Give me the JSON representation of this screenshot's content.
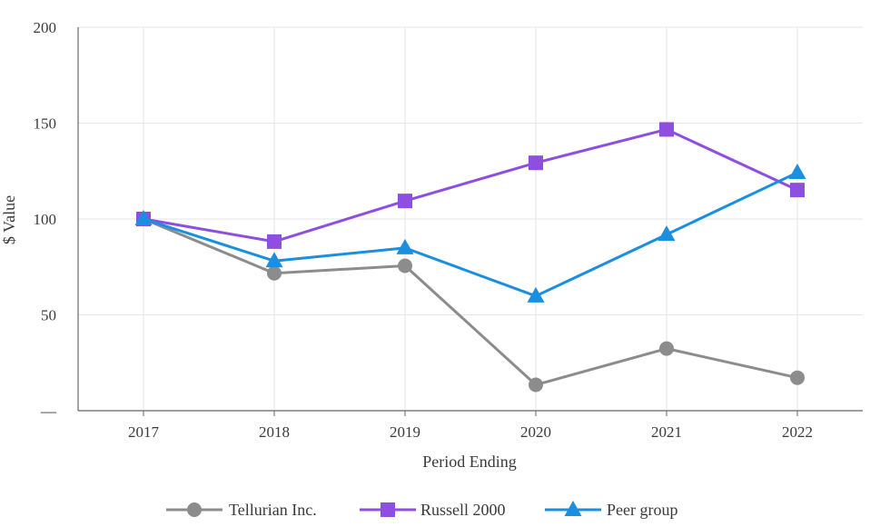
{
  "chart_data": {
    "type": "line",
    "x": [
      "2017",
      "2018",
      "2019",
      "2020",
      "2021",
      "2022"
    ],
    "xlabel": "Period Ending",
    "ylabel": "$ Value",
    "ylim": [
      0,
      200
    ],
    "yticks": [
      {
        "value": 0,
        "label": "—"
      },
      {
        "value": 50,
        "label": "50"
      },
      {
        "value": 100,
        "label": "100"
      },
      {
        "value": 150,
        "label": "150"
      },
      {
        "value": 200,
        "label": "200"
      }
    ],
    "grid": true,
    "legend": "bottom",
    "series": [
      {
        "name": "Tellurian Inc.",
        "marker": "circle",
        "color": "#8c8c8c",
        "values": [
          100,
          71.7,
          75.6,
          13.5,
          32.4,
          17.2
        ]
      },
      {
        "name": "Russell 2000",
        "marker": "square",
        "color": "#8e4fe0",
        "values": [
          100,
          88.2,
          109.4,
          129.3,
          146.7,
          115.1
        ]
      },
      {
        "name": "Peer group",
        "marker": "triangle",
        "color": "#1a8fe0",
        "values": [
          100,
          78.1,
          84.9,
          59.8,
          91.9,
          124.2
        ]
      }
    ]
  }
}
